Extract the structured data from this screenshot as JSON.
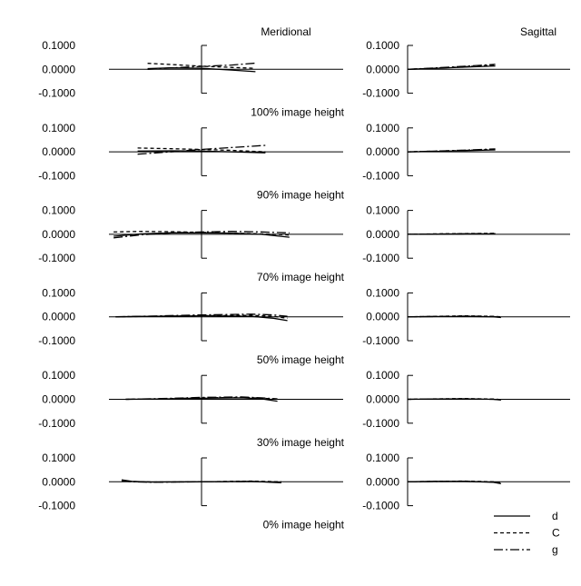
{
  "headers": {
    "meridional": "Meridional",
    "sagittal": "Sagittal"
  },
  "legend": [
    {
      "label": "d",
      "dash": ""
    },
    {
      "label": "C",
      "dash": "4,3"
    },
    {
      "label": "g",
      "dash": "10,3,2,3"
    }
  ],
  "chart_data": {
    "type": "line",
    "description_y_ticks": [
      "0.1000",
      "0.0000",
      "-0.1000"
    ],
    "ylim": [
      -0.1,
      0.1
    ],
    "xlim": [
      -1,
      1
    ],
    "rows": [
      {
        "label": "100% image height",
        "meridional": [
          {
            "name": "d",
            "x": [
              -0.54,
              -0.3,
              0,
              0.3,
              0.54
            ],
            "y": [
              0.003,
              0.006,
              0.004,
              -0.003,
              -0.01
            ]
          },
          {
            "name": "C",
            "x": [
              -0.54,
              -0.3,
              0,
              0.3,
              0.54
            ],
            "y": [
              0.025,
              0.02,
              0.013,
              0.008,
              0.004
            ]
          },
          {
            "name": "g",
            "x": [
              -0.54,
              -0.3,
              0,
              0.3,
              0.54
            ],
            "y": [
              0.0,
              0.006,
              0.012,
              0.018,
              0.026
            ]
          }
        ],
        "sagittal": [
          {
            "name": "d",
            "x": [
              0,
              0.3,
              0.6,
              0.92
            ],
            "y": [
              0.0,
              0.004,
              0.009,
              0.014
            ]
          },
          {
            "name": "C",
            "x": [
              0,
              0.3,
              0.6,
              0.92
            ],
            "y": [
              0.0,
              0.005,
              0.011,
              0.018
            ]
          },
          {
            "name": "g",
            "x": [
              0,
              0.3,
              0.6,
              0.92
            ],
            "y": [
              0.0,
              0.006,
              0.013,
              0.021
            ]
          }
        ]
      },
      {
        "label": "90% image height",
        "meridional": [
          {
            "name": "d",
            "x": [
              -0.64,
              -0.3,
              0,
              0.3,
              0.64
            ],
            "y": [
              0.003,
              0.004,
              0.003,
              0.0,
              -0.004
            ]
          },
          {
            "name": "C",
            "x": [
              -0.64,
              -0.3,
              0,
              0.3,
              0.64
            ],
            "y": [
              0.016,
              0.013,
              0.01,
              0.006,
              0.0
            ]
          },
          {
            "name": "g",
            "x": [
              -0.64,
              -0.3,
              0,
              0.3,
              0.64
            ],
            "y": [
              -0.01,
              0.0,
              0.01,
              0.018,
              0.027
            ]
          }
        ],
        "sagittal": [
          {
            "name": "d",
            "x": [
              0,
              0.3,
              0.6,
              0.92
            ],
            "y": [
              0.0,
              0.002,
              0.005,
              0.008
            ]
          },
          {
            "name": "C",
            "x": [
              0,
              0.3,
              0.6,
              0.92
            ],
            "y": [
              0.0,
              0.003,
              0.006,
              0.01
            ]
          },
          {
            "name": "g",
            "x": [
              0,
              0.3,
              0.6,
              0.92
            ],
            "y": [
              0.0,
              0.003,
              0.007,
              0.012
            ]
          }
        ]
      },
      {
        "label": "70% image height",
        "meridional": [
          {
            "name": "d",
            "x": [
              -0.88,
              -0.6,
              -0.3,
              0,
              0.3,
              0.6,
              0.88
            ],
            "y": [
              -0.008,
              0.002,
              0.006,
              0.006,
              0.005,
              0.0,
              -0.012
            ]
          },
          {
            "name": "C",
            "x": [
              -0.88,
              -0.6,
              -0.3,
              0,
              0.3,
              0.6,
              0.88
            ],
            "y": [
              0.01,
              0.012,
              0.011,
              0.008,
              0.005,
              0.002,
              -0.003
            ]
          },
          {
            "name": "g",
            "x": [
              -0.88,
              -0.6,
              -0.3,
              0,
              0.3,
              0.6,
              0.88
            ],
            "y": [
              -0.015,
              -0.002,
              0.006,
              0.01,
              0.012,
              0.01,
              0.006
            ]
          }
        ],
        "sagittal": [
          {
            "name": "d",
            "x": [
              0,
              0.3,
              0.6,
              0.92
            ],
            "y": [
              0.0,
              0.001,
              0.002,
              0.002
            ]
          },
          {
            "name": "C",
            "x": [
              0,
              0.3,
              0.6,
              0.92
            ],
            "y": [
              0.0,
              0.002,
              0.003,
              0.004
            ]
          },
          {
            "name": "g",
            "x": [
              0,
              0.3,
              0.6,
              0.92
            ],
            "y": [
              0.0,
              0.001,
              0.002,
              0.003
            ]
          }
        ]
      },
      {
        "label": "50% image height",
        "meridional": [
          {
            "name": "d",
            "x": [
              -0.86,
              -0.5,
              0,
              0.5,
              0.72,
              0.86
            ],
            "y": [
              0.0,
              0.002,
              0.004,
              0.002,
              -0.006,
              -0.016
            ]
          },
          {
            "name": "C",
            "x": [
              -0.86,
              -0.5,
              0,
              0.5,
              0.72,
              0.86
            ],
            "y": [
              0.0,
              0.002,
              0.005,
              0.006,
              0.002,
              -0.006
            ]
          },
          {
            "name": "g",
            "x": [
              -0.86,
              -0.5,
              0,
              0.5,
              0.72,
              0.86
            ],
            "y": [
              0.0,
              0.003,
              0.008,
              0.011,
              0.008,
              0.002
            ]
          }
        ],
        "sagittal": [
          {
            "name": "d",
            "x": [
              0,
              0.3,
              0.6,
              0.9,
              0.98
            ],
            "y": [
              0.0,
              0.001,
              0.002,
              0.0,
              -0.003
            ]
          },
          {
            "name": "C",
            "x": [
              0,
              0.3,
              0.6,
              0.9,
              0.98
            ],
            "y": [
              0.0,
              0.002,
              0.004,
              0.002,
              0.0
            ]
          },
          {
            "name": "g",
            "x": [
              0,
              0.3,
              0.6,
              0.9,
              0.98
            ],
            "y": [
              0.0,
              0.001,
              0.003,
              0.001,
              -0.002
            ]
          }
        ]
      },
      {
        "label": "30% image height",
        "meridional": [
          {
            "name": "d",
            "x": [
              -0.76,
              -0.4,
              0,
              0.4,
              0.6,
              0.76
            ],
            "y": [
              0.0,
              0.001,
              0.004,
              0.006,
              0.002,
              -0.008
            ]
          },
          {
            "name": "C",
            "x": [
              -0.76,
              -0.4,
              0,
              0.4,
              0.6,
              0.76
            ],
            "y": [
              0.0,
              0.002,
              0.006,
              0.008,
              0.005,
              0.0
            ]
          },
          {
            "name": "g",
            "x": [
              -0.76,
              -0.4,
              0,
              0.4,
              0.6,
              0.76
            ],
            "y": [
              0.0,
              0.003,
              0.008,
              0.01,
              0.006,
              0.002
            ]
          }
        ],
        "sagittal": [
          {
            "name": "d",
            "x": [
              0,
              0.3,
              0.6,
              0.9,
              0.98
            ],
            "y": [
              0.0,
              0.001,
              0.002,
              0.0,
              -0.003
            ]
          },
          {
            "name": "C",
            "x": [
              0,
              0.3,
              0.6,
              0.9,
              0.98
            ],
            "y": [
              0.0,
              0.002,
              0.003,
              0.001,
              -0.001
            ]
          },
          {
            "name": "g",
            "x": [
              0,
              0.3,
              0.6,
              0.9,
              0.98
            ],
            "y": [
              0.0,
              0.001,
              0.002,
              0.0,
              -0.002
            ]
          }
        ]
      },
      {
        "label": "0% image height",
        "meridional": [
          {
            "name": "d",
            "x": [
              -0.8,
              -0.7,
              -0.5,
              0,
              0.5,
              0.8
            ],
            "y": [
              0.008,
              0.002,
              -0.001,
              0.0,
              0.002,
              -0.004
            ]
          },
          {
            "name": "C",
            "x": [
              -0.8,
              -0.7,
              -0.5,
              0,
              0.5,
              0.8
            ],
            "y": [
              0.006,
              0.001,
              -0.001,
              0.0,
              0.003,
              0.0
            ]
          },
          {
            "name": "g",
            "x": [
              -0.8,
              -0.7,
              -0.5,
              0,
              0.5,
              0.8
            ],
            "y": [
              0.004,
              0.0,
              -0.002,
              0.0,
              0.001,
              -0.002
            ]
          }
        ],
        "sagittal": [
          {
            "name": "d",
            "x": [
              0,
              0.3,
              0.6,
              0.9,
              0.98
            ],
            "y": [
              0.0,
              0.002,
              0.002,
              -0.002,
              -0.008
            ]
          },
          {
            "name": "C",
            "x": [
              0,
              0.3,
              0.6,
              0.9,
              0.98
            ],
            "y": [
              0.0,
              0.002,
              0.003,
              0.0,
              -0.004
            ]
          },
          {
            "name": "g",
            "x": [
              0,
              0.3,
              0.6,
              0.9,
              0.98
            ],
            "y": [
              0.0,
              0.001,
              0.002,
              -0.001,
              -0.006
            ]
          }
        ]
      }
    ]
  }
}
